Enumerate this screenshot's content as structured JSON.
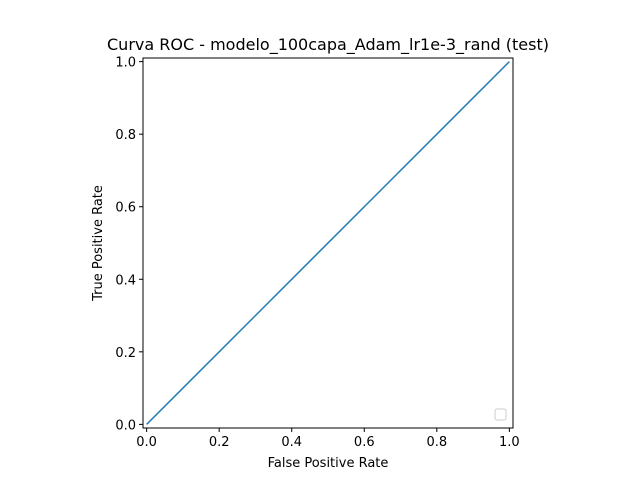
{
  "chart_data": {
    "type": "line",
    "title": "Curva ROC - modelo_100capa_Adam_lr1e-3_rand (test)",
    "xlabel": "False Positive Rate",
    "ylabel": "True Positive Rate",
    "xlim": [
      -0.01,
      1.01
    ],
    "ylim": [
      -0.01,
      1.01
    ],
    "xticks": [
      0.0,
      0.2,
      0.4,
      0.6,
      0.8,
      1.0
    ],
    "xtick_labels": [
      "0.0",
      "0.2",
      "0.4",
      "0.6",
      "0.8",
      "1.0"
    ],
    "yticks": [
      0.0,
      0.2,
      0.4,
      0.6,
      0.8,
      1.0
    ],
    "ytick_labels": [
      "0.0",
      "0.2",
      "0.4",
      "0.6",
      "0.8",
      "1.0"
    ],
    "series": [
      {
        "x": [
          0.0,
          1.0
        ],
        "y": [
          0.0,
          1.0
        ],
        "color": "#1f77b4"
      }
    ],
    "grid": false,
    "legend": {
      "placement": "lower right",
      "entries": []
    }
  }
}
